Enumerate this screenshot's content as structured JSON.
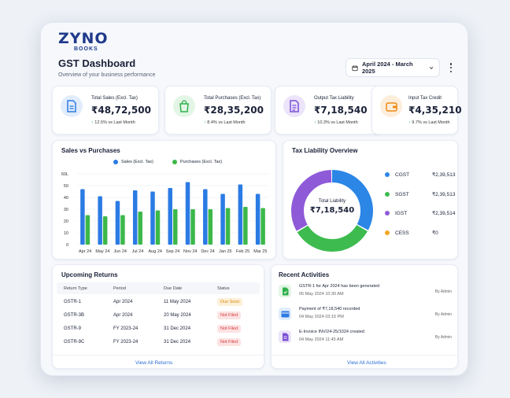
{
  "brand": {
    "name": "ZYNO",
    "sub": "BOOKS",
    "accent": "#1f3a8a"
  },
  "header": {
    "title": "GST Dashboard",
    "subtitle": "Overview of your business performance",
    "date_range": "April 2024 - March 2025",
    "icons": [
      "calendar-icon",
      "chevron-down-icon",
      "more-vertical-icon"
    ]
  },
  "stats": [
    {
      "label": "Total Sales (Excl. Tax)",
      "value": "₹48,72,500",
      "delta": "12.5% vs Last Month",
      "icon": "document-icon",
      "color": "#2b7be4"
    },
    {
      "label": "Total Purchases (Excl. Tax)",
      "value": "₹28,35,200",
      "delta": "8.4% vs Last Month",
      "icon": "shopping-bag-icon",
      "color": "#2fb04a"
    },
    {
      "label": "Output Tax Liability",
      "value": "₹7,18,540",
      "delta": "10.3% vs Last Month",
      "icon": "file-text-icon",
      "color": "#7b4fd6"
    },
    {
      "label": "Input Tax Credit",
      "value": "₹4,35,210",
      "delta": "9.7% vs Last Month",
      "icon": "wallet-icon",
      "color": "#f08a14"
    }
  ],
  "sales_chart": {
    "title": "Sales vs Purchases",
    "chart_data": {
      "type": "bar",
      "categories": [
        "Apr 24",
        "May 24",
        "Jun 24",
        "Jul 24",
        "Aug 24",
        "Sep 24",
        "Nov 24",
        "Dec 24",
        "Jan 25",
        "Feb 25",
        "Mar 25"
      ],
      "series": [
        {
          "name": "Sales (Excl. Tax)",
          "color": "#2b7be4",
          "values": [
            47,
            41,
            37,
            46,
            45,
            48,
            53,
            47,
            43,
            51,
            43
          ]
        },
        {
          "name": "Purchases (Excl. Tax)",
          "color": "#3cb84a",
          "values": [
            25,
            24,
            25,
            28,
            29,
            30,
            30,
            30,
            31,
            32,
            31
          ]
        }
      ],
      "y_ticks": [
        "0",
        "10",
        "20",
        "30",
        "40",
        "50",
        "60L"
      ],
      "ylim": [
        0,
        60
      ],
      "grid": true,
      "legend": "top"
    }
  },
  "tax_chart": {
    "title": "Tax Liability Overview",
    "center_label": "Total Liability",
    "center_value": "₹7,18,540",
    "chart_data": {
      "type": "pie",
      "labels": [
        "CGST",
        "SGST",
        "IGST",
        "CESS"
      ],
      "values": [
        239513,
        239513,
        239514,
        0
      ],
      "display_values": [
        "₹2,39,513",
        "₹2,39,513",
        "₹2,39,514",
        "₹0"
      ],
      "colors": [
        "#2b86e6",
        "#3dbb4f",
        "#8e5ad8",
        "#f5a524"
      ],
      "legend": "right"
    }
  },
  "returns": {
    "title": "Upcoming Returns",
    "columns": [
      "Return Type",
      "Period",
      "Due Date",
      "Status"
    ],
    "rows": [
      {
        "type": "GSTR-1",
        "period": "Apr 2024",
        "due": "11 May 2024",
        "status": "Due Soon"
      },
      {
        "type": "GSTR-3B",
        "period": "Apr 2024",
        "due": "20 May 2024",
        "status": "Not Filed"
      },
      {
        "type": "GSTR-9",
        "period": "FY 2023-24",
        "due": "31 Dec 2024",
        "status": "Not Filed"
      },
      {
        "type": "GSTR-9C",
        "period": "FY 2023-24",
        "due": "31 Dec 2024",
        "status": "Not Filed"
      }
    ],
    "link": "View All Returns"
  },
  "activities": {
    "title": "Recent Activities",
    "items": [
      {
        "text": "GSTR-1 for Apr 2024 has been generated",
        "time": "05 May 2024 10:30 AM",
        "by": "By Admin",
        "icon": "document-check-icon",
        "color": "#2fb04a"
      },
      {
        "text": "Payment of ₹7,18,540 recorded",
        "time": "04 May 2024 03:15 PM",
        "by": "By Admin",
        "icon": "payment-icon",
        "color": "#2b7be4"
      },
      {
        "text": "E-Invoice INV/24-25/1024 created",
        "time": "04 May 2024 11:45 AM",
        "by": "By Admin",
        "icon": "invoice-icon",
        "color": "#7b4fd6"
      }
    ],
    "link": "View All Activities"
  }
}
